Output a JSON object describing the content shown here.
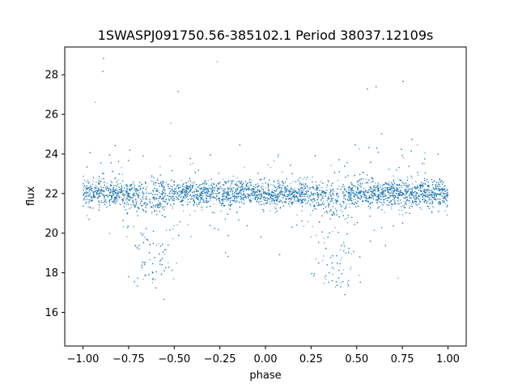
{
  "chart_data": {
    "type": "scatter",
    "title": "1SWASPJ091750.56-385102.1 Period 38037.12109s",
    "xlabel": "phase",
    "ylabel": "flux",
    "xlim": [
      -1.1,
      1.1
    ],
    "ylim": [
      14.3,
      29.4
    ],
    "x_ticks": [
      -1.0,
      -0.75,
      -0.5,
      -0.25,
      0.0,
      0.25,
      0.5,
      0.75,
      1.0
    ],
    "x_tick_labels": [
      "−1.00",
      "−0.75",
      "−0.50",
      "−0.25",
      "0.00",
      "0.25",
      "0.50",
      "0.75",
      "1.00"
    ],
    "y_ticks": [
      16,
      18,
      20,
      22,
      24,
      26,
      28
    ],
    "y_tick_labels": [
      "16",
      "18",
      "20",
      "22",
      "24",
      "26",
      "28"
    ],
    "marker_color": "#1f77b4",
    "grid": false,
    "legend": "none",
    "phase_range": [
      -1.0,
      1.0
    ],
    "baseline_flux": 22.0,
    "primary_eclipse_phases": [
      -0.62,
      0.38
    ],
    "eclipse_minimum_flux": 17.5,
    "profile": [
      {
        "phase": -1.0,
        "flux": 22.0
      },
      {
        "phase": -0.9,
        "flux": 22.0
      },
      {
        "phase": -0.8,
        "flux": 21.8
      },
      {
        "phase": -0.72,
        "flux": 19.5
      },
      {
        "phase": -0.65,
        "flux": 17.8
      },
      {
        "phase": -0.6,
        "flux": 17.5
      },
      {
        "phase": -0.55,
        "flux": 18.5
      },
      {
        "phase": -0.48,
        "flux": 21.0
      },
      {
        "phase": -0.4,
        "flux": 21.8
      },
      {
        "phase": -0.25,
        "flux": 22.1
      },
      {
        "phase": -0.1,
        "flux": 22.1
      },
      {
        "phase": 0.0,
        "flux": 22.0
      },
      {
        "phase": 0.1,
        "flux": 21.9
      },
      {
        "phase": 0.2,
        "flux": 21.8
      },
      {
        "phase": 0.28,
        "flux": 19.5
      },
      {
        "phase": 0.35,
        "flux": 17.8
      },
      {
        "phase": 0.4,
        "flux": 17.5
      },
      {
        "phase": 0.45,
        "flux": 18.5
      },
      {
        "phase": 0.52,
        "flux": 21.0
      },
      {
        "phase": 0.6,
        "flux": 21.8
      },
      {
        "phase": 0.75,
        "flux": 22.1
      },
      {
        "phase": 0.9,
        "flux": 22.1
      },
      {
        "phase": 1.0,
        "flux": 22.0
      }
    ]
  }
}
